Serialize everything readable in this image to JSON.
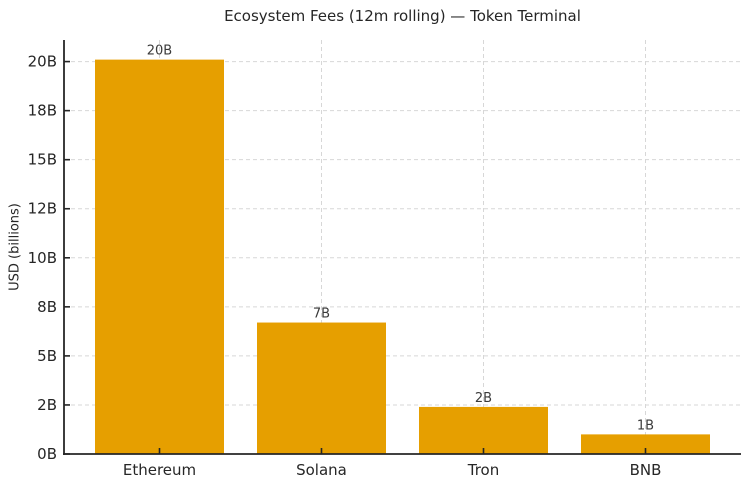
{
  "chart_data": {
    "type": "bar",
    "title": "Ecosystem Fees (12m rolling) — Token Terminal",
    "ylabel": "USD (billions)",
    "xlabel": "",
    "categories": [
      "Ethereum",
      "Solana",
      "Tron",
      "BNB"
    ],
    "values": [
      20.1,
      6.7,
      2.4,
      1.0
    ],
    "bar_value_labels": [
      "20B",
      "7B",
      "2B",
      "1B"
    ],
    "ylim": [
      0,
      21.1
    ],
    "yticks": [
      {
        "value": 0,
        "label": "0B"
      },
      {
        "value": 2.5,
        "label": "2B"
      },
      {
        "value": 5,
        "label": "5B"
      },
      {
        "value": 7.5,
        "label": "8B"
      },
      {
        "value": 10,
        "label": "10B"
      },
      {
        "value": 12.5,
        "label": "12B"
      },
      {
        "value": 15,
        "label": "15B"
      },
      {
        "value": 17.5,
        "label": "18B"
      },
      {
        "value": 20,
        "label": "20B"
      }
    ],
    "grid": true,
    "legend_position": "none",
    "colors": {
      "bar": "#E69F00",
      "grid": "#d7d7d7",
      "spine": "#262626",
      "tick_label": "#262626",
      "title": "#262626",
      "bar_label": "#3a3a3a",
      "background": "#ffffff"
    }
  }
}
